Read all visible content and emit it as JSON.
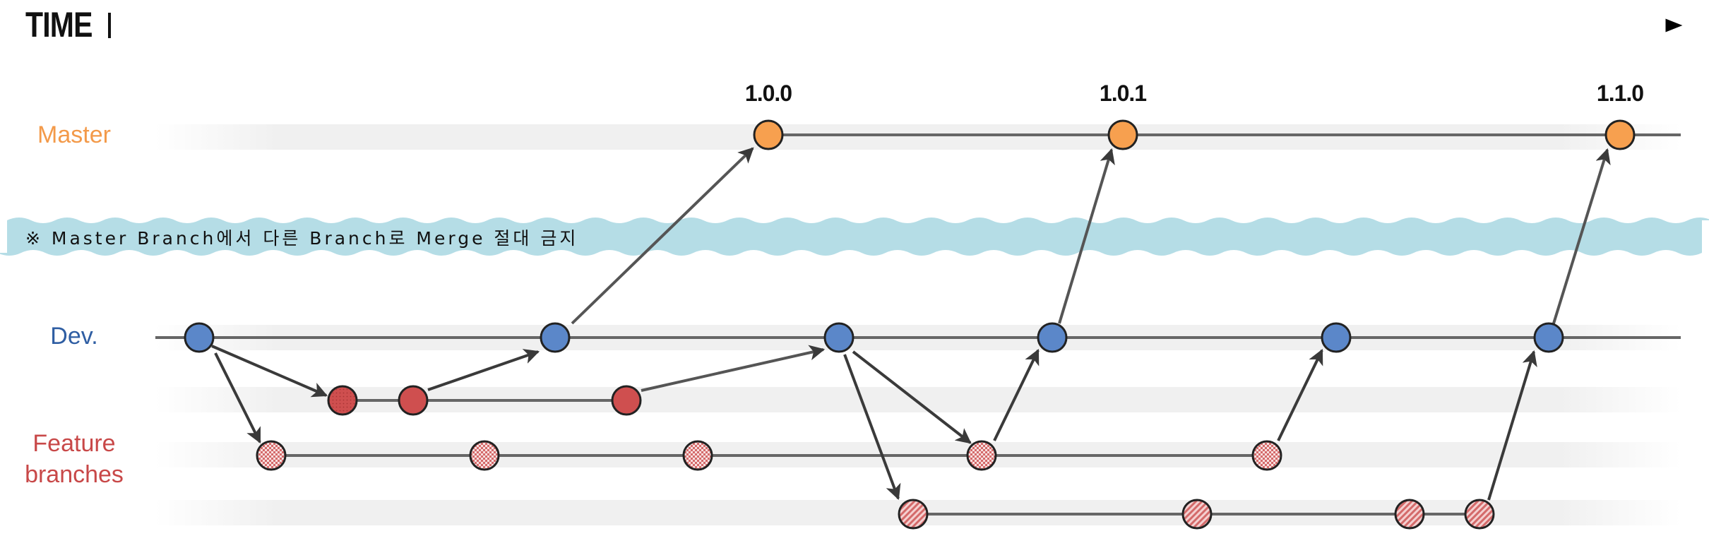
{
  "header": {
    "title": "TIME"
  },
  "lanes": {
    "master": "Master",
    "dev": "Dev.",
    "feature_line1": "Feature",
    "feature_line2": "branches"
  },
  "warning": "※ Master Branch에서 다른 Branch로 Merge 절대 금지",
  "versions": [
    "1.0.0",
    "1.0.1",
    "1.1.0"
  ],
  "colors": {
    "master_commit": "#f7a04f",
    "dev_commit": "#5b87c9",
    "feature_solid": "#cf4f4f",
    "feature_hatched": "#e9a8a8",
    "warning_band": "#b5dde6",
    "master_label": "#f39a4a",
    "dev_label": "#2f5ea3",
    "feature_label": "#c84848"
  }
}
